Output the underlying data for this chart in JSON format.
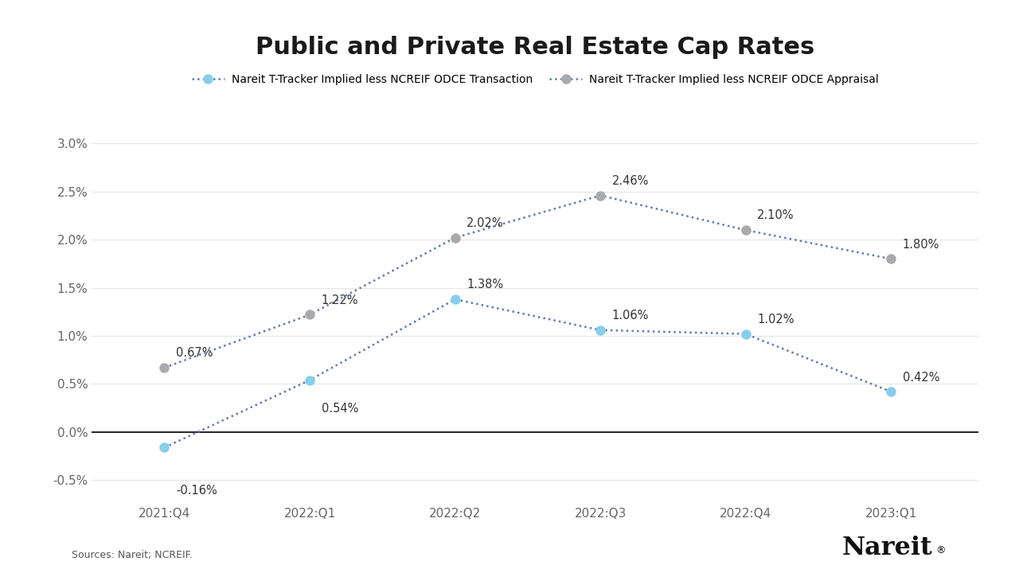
{
  "title": "Public and Private Real Estate Cap Rates",
  "categories": [
    "2021:Q4",
    "2022:Q1",
    "2022:Q2",
    "2022:Q3",
    "2022:Q4",
    "2023:Q1"
  ],
  "series1": {
    "label": "Nareit T-Tracker Implied less NCREIF ODCE Transaction",
    "values": [
      -0.0016,
      0.0054,
      0.0138,
      0.0106,
      0.0102,
      0.0042
    ],
    "labels": [
      "-0.16%",
      "0.54%",
      "1.38%",
      "1.06%",
      "1.02%",
      "0.42%"
    ],
    "label_xoffset": [
      0.08,
      0.08,
      0.08,
      0.08,
      0.08,
      0.08
    ],
    "label_yoffset": [
      -0.0045,
      -0.003,
      0.0015,
      0.0015,
      0.0015,
      0.0015
    ],
    "color": "#87CEEB",
    "marker_color": "#87CEEB"
  },
  "series2": {
    "label": "Nareit T-Tracker Implied less NCREIF ODCE Appraisal",
    "values": [
      0.0067,
      0.0122,
      0.0202,
      0.0246,
      0.021,
      0.018
    ],
    "labels": [
      "0.67%",
      "1.22%",
      "2.02%",
      "2.46%",
      "2.10%",
      "1.80%"
    ],
    "label_xoffset": [
      0.08,
      0.08,
      0.08,
      0.08,
      0.08,
      0.08
    ],
    "label_yoffset": [
      0.0015,
      0.0015,
      0.0015,
      0.0015,
      0.0015,
      0.0015
    ],
    "color": "#AAAAAA",
    "marker_color": "#AAAAAA"
  },
  "ylim": [
    -0.0075,
    0.033
  ],
  "yticks": [
    -0.005,
    0.0,
    0.005,
    0.01,
    0.015,
    0.02,
    0.025,
    0.03
  ],
  "ytick_labels": [
    "-0.5%",
    "0.0%",
    "0.5%",
    "1.0%",
    "1.5%",
    "2.0%",
    "2.5%",
    "3.0%"
  ],
  "line_color": "#5B7BBF",
  "source_text": "Sources: Nareit; NCREIF.",
  "nareit_text": "Nareit",
  "background_color": "#FFFFFF",
  "label_fontsize": 10.5,
  "tick_fontsize": 11,
  "title_fontsize": 22,
  "legend_fontsize": 10
}
